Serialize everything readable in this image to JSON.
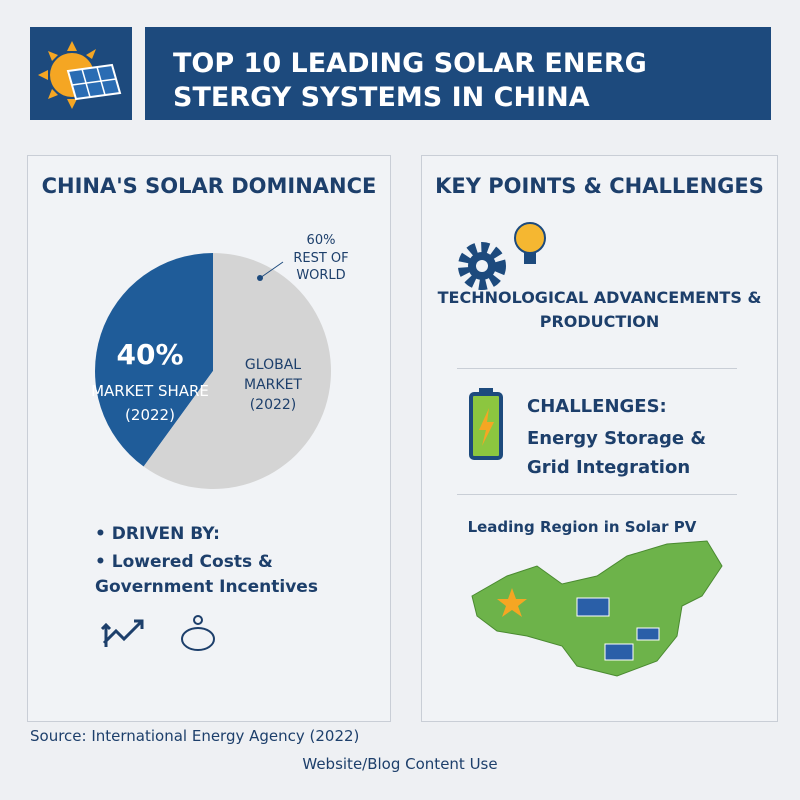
{
  "header": {
    "title": "TOP 10 LEADING SOLAR ENERG STERGY SYSTEMS IN CHINA"
  },
  "chart_data": {
    "type": "pie",
    "title": "CHINA'S SOLAR DOMINANCE",
    "categories": [
      "MARKET SHARE (2022)",
      "REST OF WORLD"
    ],
    "values": [
      40,
      60
    ],
    "value_labels": [
      "40%",
      "60%"
    ],
    "colors": [
      "#1f5c99",
      "#d4d4d4"
    ],
    "annotation": "GLOBAL MARKET (2022)"
  },
  "drivers": {
    "heading": "DRIVEN BY:",
    "text": "Lowered Costs & Government Incentives"
  },
  "key_points": {
    "title": "KEY POINTS & CHALLENGES",
    "tech": "TECHNOLOGICAL ADVANCEMENTS & PRODUCTION",
    "challenges_heading": "CHALLENGES:",
    "challenges_text": "Energy Storage & Grid Integration",
    "map_title": "Leading Region in Solar PV"
  },
  "footer": {
    "source": "Source: International Energy Agency (2022)",
    "use": "Website/Blog Content Use"
  }
}
